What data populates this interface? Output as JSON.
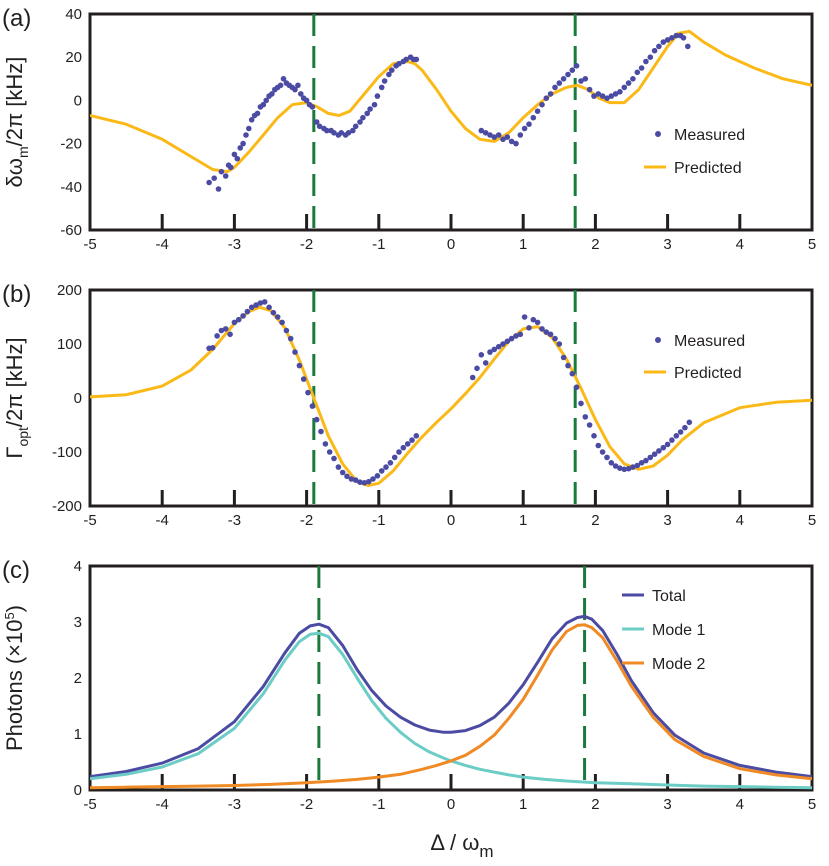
{
  "figure": {
    "xlabel": "Δ / ω",
    "xlabel_sub": "m"
  },
  "chart_data": [
    {
      "type": "scatter",
      "panel_label": "(a)",
      "title": "",
      "ylabel_parts": {
        "a": "δω",
        "b": "m",
        "c": "/2π  [kHz]"
      },
      "xlim": [
        -5,
        5
      ],
      "ylim": [
        -60,
        40
      ],
      "xticks": [
        -5,
        -4,
        -3,
        -2,
        -1,
        0,
        1,
        2,
        3,
        4,
        5
      ],
      "xtick_labels": [
        "-5",
        "-4",
        "-3",
        "-2",
        "-1",
        "0",
        "1",
        "2",
        "3",
        "4",
        "5"
      ],
      "yticks": [
        -60,
        -40,
        -20,
        0,
        20,
        40
      ],
      "ytick_labels": [
        "-60",
        "-40",
        "-20",
        "0",
        "20",
        "40"
      ],
      "vlines": [
        -1.9,
        1.72
      ],
      "legend": {
        "placement": "right",
        "entries": [
          "Measured",
          "Predicted"
        ]
      },
      "series": [
        {
          "name": "Measured",
          "kind": "scatter",
          "color": "#4b4ba3",
          "x": [
            -3.35,
            -3.28,
            -3.22,
            -3.18,
            -3.12,
            -3.08,
            -3.05,
            -3.0,
            -2.96,
            -2.92,
            -2.88,
            -2.84,
            -2.8,
            -2.76,
            -2.72,
            -2.68,
            -2.64,
            -2.6,
            -2.56,
            -2.52,
            -2.48,
            -2.44,
            -2.4,
            -2.36,
            -2.32,
            -2.28,
            -2.24,
            -2.2,
            -2.16,
            -2.12,
            -2.08,
            -2.04,
            -2.0,
            -1.96,
            -1.92,
            -1.86,
            -1.82,
            -1.76,
            -1.72,
            -1.66,
            -1.62,
            -1.56,
            -1.52,
            -1.46,
            -1.42,
            -1.36,
            -1.32,
            -1.26,
            -1.22,
            -1.16,
            -1.12,
            -1.06,
            -1.02,
            -0.96,
            -0.92,
            -0.86,
            -0.82,
            -0.76,
            -0.72,
            -0.66,
            -0.62,
            -0.56,
            -0.52,
            -0.48,
            0.42,
            0.48,
            0.54,
            0.6,
            0.66,
            0.72,
            0.78,
            0.84,
            0.9,
            0.96,
            1.02,
            1.08,
            1.14,
            1.2,
            1.26,
            1.32,
            1.38,
            1.44,
            1.5,
            1.56,
            1.62,
            1.68,
            1.74,
            1.8,
            1.86,
            1.92,
            1.98,
            2.04,
            2.1,
            2.16,
            2.22,
            2.28,
            2.34,
            2.4,
            2.46,
            2.52,
            2.58,
            2.64,
            2.7,
            2.76,
            2.82,
            2.88,
            2.94,
            3.0,
            3.06,
            3.12,
            3.18,
            3.22,
            3.28
          ],
          "y": [
            -38,
            -36,
            -41,
            -33,
            -35,
            -30,
            -31,
            -25,
            -27,
            -22,
            -20,
            -16,
            -13,
            -9,
            -7,
            -6,
            -3,
            -2,
            0,
            2,
            3,
            5,
            6,
            7,
            10,
            8,
            7,
            6,
            5,
            7,
            3,
            1,
            0,
            -2,
            -3,
            -10,
            -12,
            -13,
            -14,
            -14,
            -15,
            -16,
            -15,
            -16,
            -15,
            -14,
            -12,
            -10,
            -8,
            -6,
            -4,
            -2,
            2,
            6,
            9,
            12,
            14,
            16,
            17,
            18,
            19,
            20,
            19,
            19,
            -14,
            -15,
            -16,
            -17,
            -16,
            -18,
            -17,
            -19,
            -20,
            -16,
            -13,
            -11,
            -8,
            -5,
            -2,
            1,
            3,
            6,
            8,
            10,
            12,
            14,
            16,
            9,
            10,
            5,
            2,
            3,
            2,
            1,
            2,
            3,
            4,
            6,
            8,
            10,
            13,
            15,
            18,
            20,
            23,
            25,
            27,
            28,
            29,
            30,
            30,
            29,
            25
          ]
        },
        {
          "name": "Predicted",
          "kind": "line",
          "color": "#fbb917",
          "x": [
            -5.0,
            -4.5,
            -4.0,
            -3.6,
            -3.3,
            -3.1,
            -3.0,
            -2.8,
            -2.6,
            -2.4,
            -2.2,
            -2.0,
            -1.85,
            -1.7,
            -1.55,
            -1.4,
            -1.2,
            -1.0,
            -0.8,
            -0.6,
            -0.5,
            -0.4,
            -0.2,
            0.0,
            0.2,
            0.4,
            0.6,
            0.8,
            1.0,
            1.2,
            1.4,
            1.6,
            1.75,
            1.9,
            2.05,
            2.2,
            2.4,
            2.6,
            2.8,
            3.0,
            3.15,
            3.3,
            3.5,
            3.8,
            4.2,
            4.6,
            5.0
          ],
          "y": [
            -7,
            -11,
            -18,
            -26,
            -32,
            -33,
            -31,
            -24,
            -16,
            -8,
            -2,
            -1,
            -3,
            -6,
            -7,
            -5,
            3,
            11,
            17,
            18,
            17,
            14,
            5,
            -5,
            -13,
            -18,
            -19,
            -15,
            -8,
            -2,
            3,
            6,
            7,
            5,
            1,
            -1,
            -1,
            5,
            15,
            25,
            31,
            32,
            27,
            21,
            15,
            10,
            7
          ]
        }
      ]
    },
    {
      "type": "scatter",
      "panel_label": "(b)",
      "title": "",
      "ylabel_parts": {
        "a": "Γ",
        "b": "opt",
        "c": "/2π  [kHz]"
      },
      "xlim": [
        -5,
        5
      ],
      "ylim": [
        -200,
        200
      ],
      "xticks": [
        -5,
        -4,
        -3,
        -2,
        -1,
        0,
        1,
        2,
        3,
        4,
        5
      ],
      "xtick_labels": [
        "-5",
        "-4",
        "-3",
        "-2",
        "-1",
        "0",
        "1",
        "2",
        "3",
        "4",
        "5"
      ],
      "yticks": [
        -200,
        -100,
        0,
        100,
        200
      ],
      "ytick_labels": [
        "-200",
        "-100",
        "0",
        "100",
        "200"
      ],
      "vlines": [
        -1.9,
        1.72
      ],
      "legend": {
        "placement": "right",
        "entries": [
          "Measured",
          "Predicted"
        ]
      },
      "series": [
        {
          "name": "Measured",
          "kind": "scatter",
          "color": "#4b4ba3",
          "x": [
            -3.35,
            -3.3,
            -3.24,
            -3.18,
            -3.12,
            -3.06,
            -3.0,
            -2.94,
            -2.88,
            -2.82,
            -2.76,
            -2.7,
            -2.64,
            -2.58,
            -2.52,
            -2.46,
            -2.4,
            -2.34,
            -2.28,
            -2.22,
            -2.16,
            -2.1,
            -2.04,
            -1.98,
            -1.92,
            -1.86,
            -1.8,
            -1.74,
            -1.68,
            -1.62,
            -1.56,
            -1.5,
            -1.44,
            -1.38,
            -1.32,
            -1.26,
            -1.2,
            -1.14,
            -1.08,
            -1.02,
            -0.96,
            -0.9,
            -0.84,
            -0.78,
            -0.72,
            -0.66,
            -0.6,
            -0.54,
            -0.48,
            0.3,
            0.36,
            0.42,
            0.48,
            0.54,
            0.6,
            0.66,
            0.72,
            0.78,
            0.84,
            0.9,
            0.96,
            1.02,
            1.08,
            1.14,
            1.2,
            1.26,
            1.32,
            1.38,
            1.44,
            1.5,
            1.56,
            1.62,
            1.68,
            1.74,
            1.8,
            1.86,
            1.92,
            1.98,
            2.04,
            2.1,
            2.16,
            2.22,
            2.28,
            2.34,
            2.4,
            2.46,
            2.52,
            2.58,
            2.64,
            2.7,
            2.76,
            2.82,
            2.88,
            2.94,
            3.0,
            3.06,
            3.12,
            3.18,
            3.24,
            3.3
          ],
          "y": [
            92,
            93,
            115,
            125,
            128,
            118,
            140,
            145,
            152,
            160,
            168,
            172,
            176,
            178,
            168,
            158,
            150,
            140,
            125,
            110,
            85,
            60,
            35,
            10,
            -15,
            -40,
            -62,
            -85,
            -100,
            -112,
            -128,
            -138,
            -145,
            -150,
            -152,
            -156,
            -157,
            -155,
            -150,
            -144,
            -135,
            -128,
            -120,
            -110,
            -100,
            -92,
            -85,
            -78,
            -70,
            38,
            55,
            80,
            65,
            85,
            90,
            95,
            100,
            105,
            110,
            115,
            118,
            150,
            130,
            145,
            140,
            128,
            122,
            118,
            110,
            100,
            75,
            60,
            45,
            20,
            -10,
            -35,
            -50,
            -70,
            -88,
            -100,
            -110,
            -120,
            -126,
            -130,
            -132,
            -131,
            -128,
            -125,
            -120,
            -116,
            -110,
            -104,
            -98,
            -92,
            -86,
            -78,
            -70,
            -63,
            -55,
            -45
          ]
        },
        {
          "name": "Predicted",
          "kind": "line",
          "color": "#fbb917",
          "x": [
            -5.0,
            -4.5,
            -4.0,
            -3.6,
            -3.3,
            -3.0,
            -2.8,
            -2.65,
            -2.5,
            -2.3,
            -2.1,
            -1.9,
            -1.7,
            -1.5,
            -1.3,
            -1.15,
            -1.0,
            -0.8,
            -0.6,
            -0.4,
            -0.2,
            0.0,
            0.2,
            0.4,
            0.6,
            0.8,
            1.0,
            1.2,
            1.4,
            1.6,
            1.8,
            2.0,
            2.2,
            2.4,
            2.6,
            2.8,
            3.0,
            3.2,
            3.5,
            4.0,
            4.5,
            5.0
          ],
          "y": [
            2,
            6,
            22,
            52,
            90,
            138,
            160,
            168,
            162,
            130,
            70,
            0,
            -70,
            -122,
            -155,
            -162,
            -158,
            -135,
            -102,
            -72,
            -45,
            -20,
            8,
            38,
            72,
            105,
            128,
            132,
            112,
            72,
            18,
            -40,
            -90,
            -122,
            -132,
            -126,
            -106,
            -78,
            -46,
            -18,
            -8,
            -4
          ]
        }
      ]
    },
    {
      "type": "line",
      "panel_label": "(c)",
      "title": "",
      "ylabel_parts": {
        "a": "Photons (×10",
        "b": "5",
        "c": ")"
      },
      "xlim": [
        -5,
        5
      ],
      "ylim": [
        0,
        4
      ],
      "xticks": [
        -5,
        -4,
        -3,
        -2,
        -1,
        0,
        1,
        2,
        3,
        4,
        5
      ],
      "xtick_labels": [
        "-5",
        "-4",
        "-3",
        "-2",
        "-1",
        "0",
        "1",
        "2",
        "3",
        "4",
        "5"
      ],
      "yticks": [
        0,
        1,
        2,
        3,
        4
      ],
      "ytick_labels": [
        "0",
        "1",
        "2",
        "3",
        "4"
      ],
      "vlines": [
        -1.83,
        1.85
      ],
      "legend": {
        "placement": "top-right",
        "entries": [
          "Total",
          "Mode 1",
          "Mode 2"
        ]
      },
      "series": [
        {
          "name": "Total",
          "kind": "line",
          "color": "#4b4ba3",
          "x": [
            -5.0,
            -4.5,
            -4.0,
            -3.5,
            -3.0,
            -2.6,
            -2.3,
            -2.1,
            -1.95,
            -1.83,
            -1.7,
            -1.5,
            -1.3,
            -1.1,
            -0.9,
            -0.7,
            -0.5,
            -0.3,
            -0.1,
            0.0,
            0.2,
            0.4,
            0.6,
            0.8,
            1.0,
            1.2,
            1.4,
            1.6,
            1.75,
            1.85,
            1.95,
            2.1,
            2.3,
            2.5,
            2.8,
            3.1,
            3.5,
            4.0,
            4.5,
            5.0
          ],
          "y": [
            0.24,
            0.33,
            0.48,
            0.74,
            1.22,
            1.85,
            2.45,
            2.8,
            2.93,
            2.96,
            2.9,
            2.58,
            2.15,
            1.78,
            1.5,
            1.3,
            1.16,
            1.07,
            1.03,
            1.03,
            1.06,
            1.15,
            1.3,
            1.55,
            1.88,
            2.28,
            2.7,
            2.98,
            3.08,
            3.1,
            3.05,
            2.85,
            2.42,
            1.95,
            1.38,
            0.98,
            0.66,
            0.44,
            0.32,
            0.24
          ]
        },
        {
          "name": "Mode 1",
          "kind": "line",
          "color": "#6cccc6",
          "x": [
            -5.0,
            -4.5,
            -4.0,
            -3.5,
            -3.0,
            -2.6,
            -2.3,
            -2.1,
            -1.95,
            -1.83,
            -1.7,
            -1.5,
            -1.3,
            -1.1,
            -0.9,
            -0.7,
            -0.5,
            -0.3,
            -0.1,
            0.0,
            0.2,
            0.4,
            0.6,
            0.8,
            1.0,
            1.3,
            1.6,
            2.0,
            2.5,
            3.0,
            3.5,
            4.0,
            4.5,
            5.0
          ],
          "y": [
            0.2,
            0.28,
            0.41,
            0.65,
            1.1,
            1.72,
            2.32,
            2.65,
            2.78,
            2.8,
            2.74,
            2.42,
            2.0,
            1.6,
            1.28,
            1.03,
            0.83,
            0.68,
            0.57,
            0.52,
            0.44,
            0.37,
            0.32,
            0.27,
            0.23,
            0.19,
            0.16,
            0.13,
            0.11,
            0.09,
            0.07,
            0.06,
            0.05,
            0.04
          ]
        },
        {
          "name": "Mode 2",
          "kind": "line",
          "color": "#f08a24",
          "x": [
            -5.0,
            -4.5,
            -4.0,
            -3.5,
            -3.0,
            -2.5,
            -2.0,
            -1.6,
            -1.3,
            -1.0,
            -0.7,
            -0.4,
            -0.2,
            0.0,
            0.2,
            0.4,
            0.6,
            0.8,
            1.0,
            1.2,
            1.4,
            1.6,
            1.75,
            1.85,
            1.95,
            2.1,
            2.3,
            2.5,
            2.8,
            3.1,
            3.5,
            4.0,
            4.5,
            5.0
          ],
          "y": [
            0.04,
            0.05,
            0.06,
            0.07,
            0.08,
            0.1,
            0.13,
            0.16,
            0.19,
            0.23,
            0.28,
            0.37,
            0.44,
            0.52,
            0.62,
            0.78,
            0.98,
            1.28,
            1.62,
            2.05,
            2.5,
            2.83,
            2.94,
            2.95,
            2.9,
            2.72,
            2.3,
            1.85,
            1.3,
            0.9,
            0.6,
            0.38,
            0.27,
            0.2
          ]
        }
      ]
    }
  ]
}
